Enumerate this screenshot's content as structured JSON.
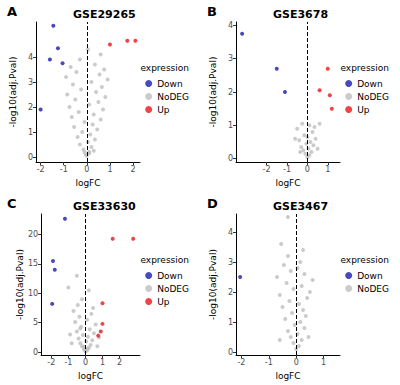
{
  "chart_data": [
    {
      "type": "scatter",
      "panel_label": "A",
      "title": "GSE29265",
      "x_label": "logFC",
      "y_label": "-log10(adj.Pval)",
      "legend_title": "expression",
      "legend": "right",
      "grid": false,
      "marker": "circle",
      "reference_line_x": 0,
      "xlim": [
        -2.2,
        2.3
      ],
      "xticks": [
        -2,
        -1,
        0,
        1,
        2
      ],
      "ylim": [
        -0.2,
        5.4
      ],
      "yticks": [
        0,
        1,
        2,
        3,
        4
      ],
      "series": [
        {
          "name": "Down",
          "color": "#1c1ca8",
          "values": [
            [
              -2.0,
              1.9
            ],
            [
              -1.45,
              5.25
            ],
            [
              -1.25,
              4.35
            ],
            [
              -1.6,
              3.9
            ],
            [
              -1.05,
              3.75
            ]
          ]
        },
        {
          "name": "NoDEG",
          "color": "#bebebe",
          "values": [
            [
              -0.05,
              0.1
            ],
            [
              0.1,
              0.2
            ],
            [
              -0.15,
              0.3
            ],
            [
              0.2,
              0.4
            ],
            [
              -0.3,
              0.5
            ],
            [
              0.05,
              0.6
            ],
            [
              0.35,
              0.7
            ],
            [
              -0.4,
              0.8
            ],
            [
              0.15,
              0.9
            ],
            [
              -0.2,
              1.0
            ],
            [
              0.45,
              1.1
            ],
            [
              -0.55,
              1.2
            ],
            [
              0.25,
              1.3
            ],
            [
              -0.1,
              1.4
            ],
            [
              0.6,
              1.5
            ],
            [
              -0.65,
              1.6
            ],
            [
              0.3,
              1.7
            ],
            [
              -0.35,
              1.8
            ],
            [
              0.7,
              1.9
            ],
            [
              -0.75,
              2.0
            ],
            [
              0.1,
              2.1
            ],
            [
              0.5,
              2.2
            ],
            [
              -0.5,
              2.3
            ],
            [
              0.8,
              2.4
            ],
            [
              -0.85,
              2.5
            ],
            [
              0.4,
              2.6
            ],
            [
              -0.25,
              2.7
            ],
            [
              0.65,
              2.8
            ],
            [
              -0.6,
              2.9
            ],
            [
              0.2,
              3.0
            ],
            [
              0.9,
              3.1
            ],
            [
              -0.9,
              3.2
            ],
            [
              0.55,
              3.3
            ],
            [
              -0.45,
              3.4
            ],
            [
              0.75,
              3.5
            ],
            [
              -0.7,
              3.6
            ],
            [
              0.35,
              3.7
            ],
            [
              -0.3,
              3.9
            ],
            [
              0.6,
              4.1
            ],
            [
              0.05,
              4.3
            ],
            [
              0.0,
              0.05
            ],
            [
              0.1,
              0.15
            ],
            [
              -0.1,
              0.2
            ],
            [
              0.3,
              0.25
            ]
          ]
        },
        {
          "name": "Up",
          "color": "#e8141c",
          "values": [
            [
              1.0,
              4.5
            ],
            [
              1.75,
              4.65
            ],
            [
              2.1,
              4.65
            ]
          ]
        }
      ]
    },
    {
      "type": "scatter",
      "panel_label": "B",
      "title": "GSE3678",
      "x_label": "logFC",
      "y_label": "-log10(adj.Pval)",
      "legend_title": "expression",
      "legend": "right",
      "grid": false,
      "marker": "circle",
      "reference_line_x": 0,
      "xlim": [
        -3.5,
        1.6
      ],
      "xticks": [
        -2,
        -1,
        0,
        1
      ],
      "ylim": [
        -0.1,
        4.1
      ],
      "yticks": [
        0,
        1,
        2,
        3,
        4
      ],
      "series": [
        {
          "name": "Down",
          "color": "#1c1ca8",
          "values": [
            [
              -3.2,
              3.75
            ],
            [
              -1.5,
              2.7
            ],
            [
              -1.1,
              2.0
            ]
          ]
        },
        {
          "name": "NoDEG",
          "color": "#bebebe",
          "values": [
            [
              0.0,
              0.05
            ],
            [
              0.1,
              0.1
            ],
            [
              -0.1,
              0.15
            ],
            [
              0.2,
              0.2
            ],
            [
              -0.2,
              0.25
            ],
            [
              0.05,
              0.3
            ],
            [
              -0.3,
              0.35
            ],
            [
              0.3,
              0.4
            ],
            [
              -0.05,
              0.45
            ],
            [
              0.15,
              0.5
            ],
            [
              -0.4,
              0.55
            ],
            [
              0.4,
              0.6
            ],
            [
              -0.15,
              0.7
            ],
            [
              0.25,
              0.8
            ],
            [
              -0.5,
              0.9
            ],
            [
              0.1,
              1.0
            ],
            [
              -0.25,
              1.05
            ],
            [
              0.35,
              0.95
            ],
            [
              -0.6,
              0.6
            ],
            [
              0.5,
              0.3
            ],
            [
              -0.35,
              0.2
            ],
            [
              0.0,
              0.65
            ],
            [
              0.6,
              1.05
            ]
          ]
        },
        {
          "name": "Up",
          "color": "#e8141c",
          "values": [
            [
              1.0,
              2.7
            ],
            [
              0.6,
              2.05
            ],
            [
              1.1,
              1.9
            ],
            [
              1.2,
              1.5
            ]
          ]
        }
      ]
    },
    {
      "type": "scatter",
      "panel_label": "C",
      "title": "GSE33630",
      "x_label": "logFC",
      "y_label": "-log10(adj.Pval)",
      "legend_title": "expression",
      "legend": "right",
      "grid": false,
      "marker": "circle",
      "reference_line_x": 0,
      "xlim": [
        -2.6,
        3.2
      ],
      "xticks": [
        -2,
        -1,
        0,
        1,
        2
      ],
      "ylim": [
        -0.5,
        23.5
      ],
      "yticks": [
        0,
        5,
        10,
        15,
        20
      ],
      "series": [
        {
          "name": "Down",
          "color": "#1c1ca8",
          "values": [
            [
              -1.2,
              22.7
            ],
            [
              -1.9,
              15.5
            ],
            [
              -1.8,
              14.0
            ],
            [
              -1.95,
              8.2
            ]
          ]
        },
        {
          "name": "NoDEG",
          "color": "#bebebe",
          "values": [
            [
              0.0,
              0.1
            ],
            [
              0.1,
              0.3
            ],
            [
              -0.1,
              0.5
            ],
            [
              0.2,
              0.7
            ],
            [
              -0.2,
              1.0
            ],
            [
              0.3,
              1.2
            ],
            [
              -0.3,
              1.5
            ],
            [
              0.05,
              1.8
            ],
            [
              0.4,
              2.0
            ],
            [
              -0.4,
              2.3
            ],
            [
              0.15,
              2.6
            ],
            [
              -0.15,
              2.9
            ],
            [
              0.5,
              3.2
            ],
            [
              -0.5,
              3.5
            ],
            [
              0.25,
              3.9
            ],
            [
              -0.25,
              4.3
            ],
            [
              0.6,
              4.7
            ],
            [
              -0.6,
              5.1
            ],
            [
              0.1,
              5.5
            ],
            [
              -0.35,
              6.0
            ],
            [
              0.35,
              6.5
            ],
            [
              -0.7,
              7.0
            ],
            [
              0.45,
              7.5
            ],
            [
              -0.45,
              8.0
            ],
            [
              0.7,
              1.0
            ],
            [
              -0.8,
              1.5
            ],
            [
              0.8,
              2.5
            ],
            [
              -0.9,
              3.0
            ],
            [
              -0.2,
              9.0
            ],
            [
              0.2,
              10.5
            ],
            [
              -1.0,
              11.0
            ],
            [
              -0.5,
              13.0
            ],
            [
              0.0,
              0.2
            ],
            [
              0.12,
              0.6
            ],
            [
              -0.08,
              0.9
            ],
            [
              -0.3,
              4.0
            ]
          ]
        },
        {
          "name": "Up",
          "color": "#e8141c",
          "values": [
            [
              1.6,
              19.3
            ],
            [
              2.8,
              19.3
            ],
            [
              1.0,
              8.3
            ],
            [
              1.0,
              4.8
            ],
            [
              0.9,
              3.5
            ],
            [
              0.75,
              2.8
            ]
          ]
        }
      ]
    },
    {
      "type": "scatter",
      "panel_label": "D",
      "title": "GSE3467",
      "x_label": "logFC",
      "y_label": "-log10(adj.Pval)",
      "legend_title": "expression",
      "legend": "right",
      "grid": false,
      "marker": "circle",
      "reference_line_x": 0,
      "xlim": [
        -2.2,
        1.6
      ],
      "xticks": [
        -2,
        -1,
        0,
        1
      ],
      "ylim": [
        -0.1,
        4.6
      ],
      "yticks": [
        0,
        1,
        2,
        3,
        4
      ],
      "series": [
        {
          "name": "Down",
          "color": "#1c1ca8",
          "values": [
            [
              -2.05,
              2.5
            ]
          ]
        },
        {
          "name": "NoDEG",
          "color": "#bebebe",
          "values": [
            [
              0.0,
              0.1
            ],
            [
              0.1,
              0.2
            ],
            [
              -0.1,
              0.3
            ],
            [
              0.2,
              0.4
            ],
            [
              -0.2,
              0.5
            ],
            [
              0.05,
              0.6
            ],
            [
              -0.3,
              0.7
            ],
            [
              0.3,
              0.8
            ],
            [
              -0.05,
              0.9
            ],
            [
              0.15,
              1.0
            ],
            [
              -0.4,
              1.1
            ],
            [
              0.35,
              1.2
            ],
            [
              -0.15,
              1.3
            ],
            [
              0.25,
              1.4
            ],
            [
              -0.5,
              1.5
            ],
            [
              0.1,
              1.6
            ],
            [
              -0.25,
              1.7
            ],
            [
              0.4,
              1.8
            ],
            [
              -0.6,
              1.9
            ],
            [
              0.5,
              2.0
            ],
            [
              -0.1,
              2.1
            ],
            [
              0.2,
              2.2
            ],
            [
              -0.35,
              2.3
            ],
            [
              0.6,
              2.4
            ],
            [
              -0.7,
              2.5
            ],
            [
              0.3,
              2.6
            ],
            [
              -0.2,
              2.7
            ],
            [
              0.05,
              2.8
            ],
            [
              -0.45,
              2.9
            ],
            [
              0.15,
              3.0
            ],
            [
              -0.3,
              3.2
            ],
            [
              0.25,
              3.4
            ],
            [
              -0.55,
              3.6
            ],
            [
              -0.3,
              4.5
            ],
            [
              0.45,
              0.5
            ],
            [
              -0.6,
              0.4
            ]
          ]
        }
      ]
    }
  ]
}
